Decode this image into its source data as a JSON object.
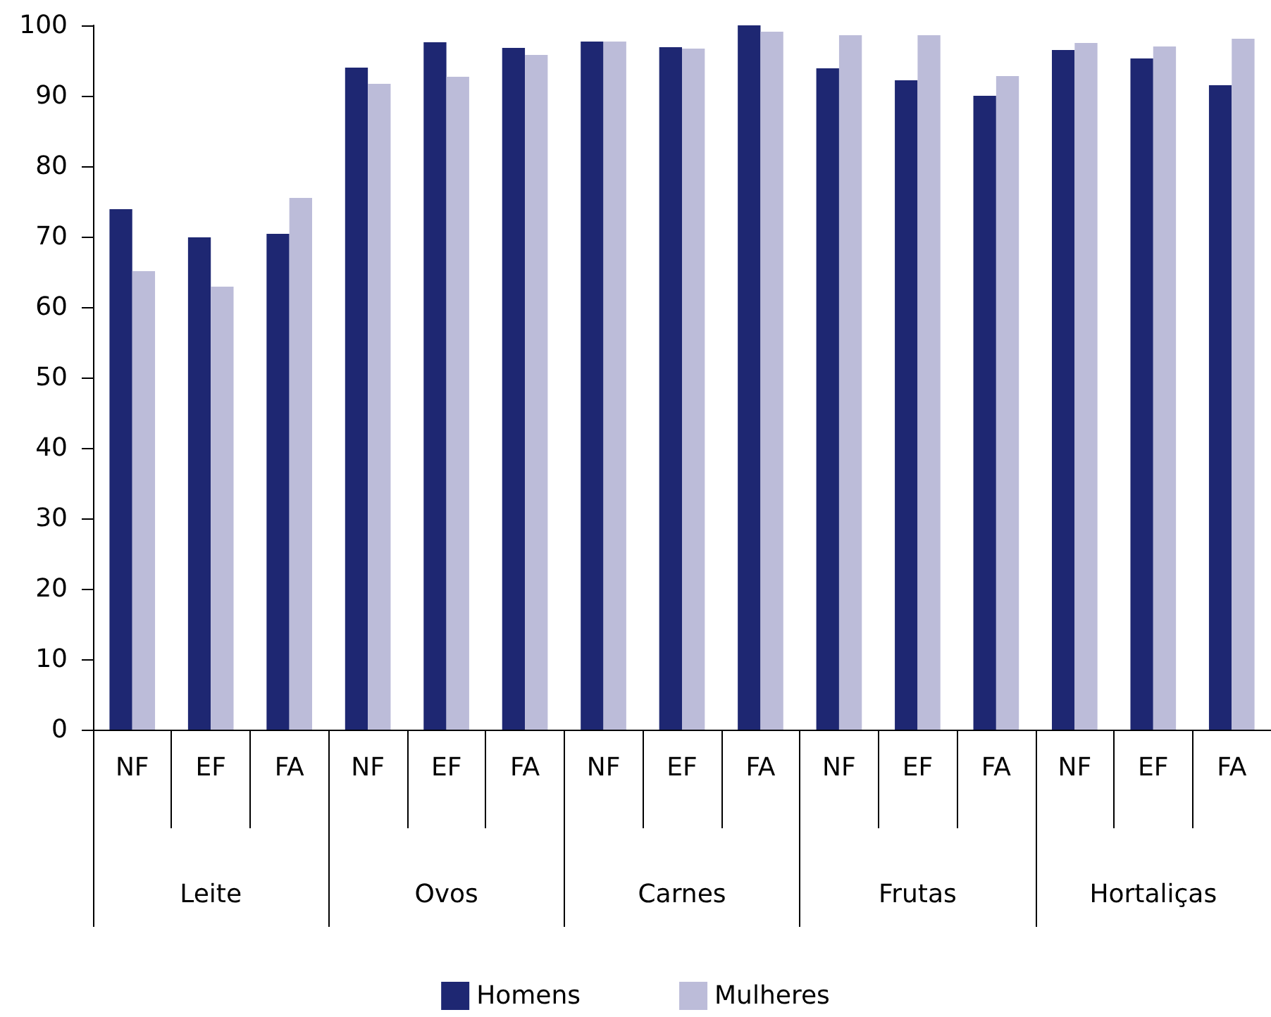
{
  "chart_data": {
    "type": "bar",
    "categories": [
      "NF",
      "EF",
      "FA",
      "NF",
      "EF",
      "FA",
      "NF",
      "EF",
      "FA",
      "NF",
      "EF",
      "FA",
      "NF",
      "EF",
      "FA"
    ],
    "annotations": [
      "Leite",
      "Ovos",
      "Carnes",
      "Frutas",
      "Hortaliças"
    ],
    "series": [
      {
        "name": "Homens",
        "color": "#1e2772",
        "values": [
          73.9,
          69.9,
          70.4,
          94.0,
          97.6,
          96.8,
          97.7,
          96.9,
          100,
          93.9,
          92.2,
          90.0,
          96.5,
          95.3,
          91.5
        ]
      },
      {
        "name": "Mulheres",
        "color": "#bcbcd9",
        "values": [
          65.1,
          62.9,
          75.5,
          91.7,
          92.7,
          95.8,
          97.7,
          96.7,
          99.1,
          98.6,
          98.6,
          92.8,
          97.5,
          97.0,
          98.1
        ]
      }
    ],
    "ylim": [
      0,
      100
    ],
    "yticks": [
      0,
      10,
      20,
      30,
      40,
      50,
      60,
      70,
      80,
      90,
      100
    ],
    "grid": false,
    "legend": "bottom"
  }
}
